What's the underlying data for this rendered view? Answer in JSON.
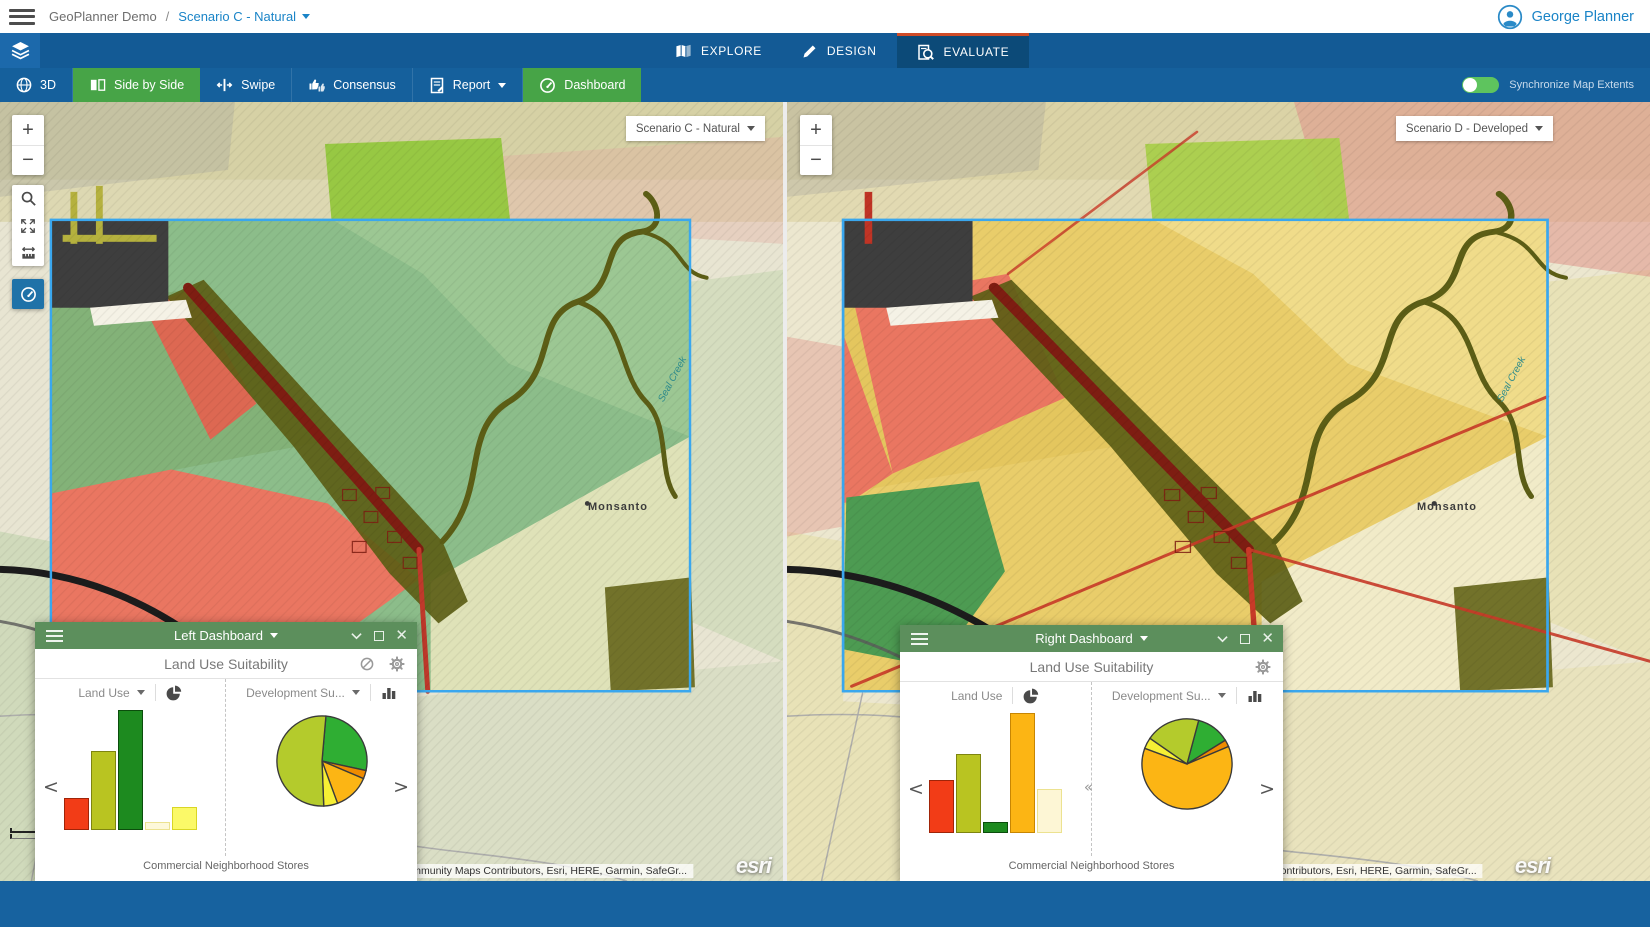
{
  "topbar": {
    "app_title": "GeoPlanner Demo",
    "separator": "/",
    "scenario_link": "Scenario C - Natural",
    "user_name": "George Planner"
  },
  "tabbar": {
    "tabs": [
      {
        "label": "EXPLORE"
      },
      {
        "label": "DESIGN"
      },
      {
        "label": "EVALUATE",
        "active": true
      }
    ]
  },
  "toolbar": {
    "buttons": [
      {
        "label": "3D"
      },
      {
        "label": "Side by Side",
        "active": true
      },
      {
        "label": "Swipe"
      },
      {
        "label": "Consensus"
      },
      {
        "label": "Report"
      },
      {
        "label": "Dashboard",
        "active": true
      }
    ],
    "sync_label": "Synchronize Map Extents",
    "active_green": "#47a447",
    "toggle_on_color": "#5ec45e"
  },
  "maps": {
    "left": {
      "scenario_selector": "Scenario C - Natural",
      "town_label": "Monsanto",
      "creek_label": "Seal Creek",
      "attribution": "Esri Community Maps Contributors, Esri, HERE, Garmin, SafeGr...",
      "esri_logo": "esri",
      "palette": {
        "base": "#e8e5d2",
        "band": "#d6d1a5",
        "band2": "#ddd8b2",
        "wash": "#a9c996",
        "pink": "#e2a9a0",
        "grayZone": "#3e3e3e",
        "pier": "#b5b13e",
        "white": "#f5f2e6",
        "interior": "#8cbd8a",
        "interiorUL": "#83b278",
        "interior2": "#9cc793",
        "lowRight": "#dfe2b8",
        "bright": "#93c73d",
        "red": "#ea7661",
        "red2": "#dd6852",
        "green": "#74ac74",
        "olive": "#5c5e16",
        "darkSquare": "#72722a",
        "roadMain": "#7e1d12",
        "roadRed": "#c0392b",
        "black": "#1c1c1c"
      }
    },
    "right": {
      "scenario_selector": "Scenario D - Developed",
      "town_label": "Monsanto",
      "creek_label": "Seal Creek",
      "attribution": "Esri Community Maps Contributors, Esri, HERE, Garmin, SafeGr...",
      "esri_logo": "esri",
      "palette": {
        "base": "#ece7cf",
        "band": "#dbd3a6",
        "band2": "#e2dab2",
        "wash": "#e4dc9a",
        "pink": "#e0948a",
        "grayZone": "#3e3e3e",
        "pier": "#c03425",
        "white": "#f5f2e6",
        "interior": "#e9cd6a",
        "interiorUL": "#e4c65e",
        "interior2": "#f0dc8a",
        "lowRight": "#f1ebc8",
        "bright": "#aacf4b",
        "red": "#ea7661",
        "red2": "#e06a54",
        "green": "#4d9b52",
        "olive": "#5c5e16",
        "darkSquare": "#72722a",
        "roadMain": "#7e1d12",
        "roadRed": "#c83a28",
        "black": "#1c1c1c"
      }
    }
  },
  "dashboards": {
    "left": {
      "window_title": "Left Dashboard",
      "widget_title": "Land Use Suitability",
      "footer": "Commercial Neighborhood Stores",
      "panel1_label": "Land Use",
      "panel2_label": "Development Su...",
      "bar_chart": {
        "type": "bar",
        "values": [
          27,
          66,
          100,
          7,
          19
        ],
        "colors": [
          "#f23c17",
          "#b9c421",
          "#1d8a1f",
          "#fdf8da",
          "#fbf968"
        ],
        "borders": [
          "#a02408",
          "#7e8510",
          "#0b4d0c",
          "#ece290",
          "#d9d625"
        ]
      },
      "pie_chart": {
        "type": "pie",
        "start_deg": 5,
        "slices": [
          {
            "value": 27,
            "color": "#2fae33"
          },
          {
            "value": 3,
            "color": "#ef8b00"
          },
          {
            "value": 13,
            "color": "#fcb514"
          },
          {
            "value": 5,
            "color": "#f6ef34"
          },
          {
            "value": 52,
            "color": "#b4cb2c"
          }
        ]
      }
    },
    "right": {
      "window_title": "Right Dashboard",
      "widget_title": "Land Use Suitability",
      "footer": "Commercial Neighborhood Stores",
      "panel1_label": "Land Use",
      "panel2_label": "Development Su...",
      "bar_chart": {
        "type": "bar",
        "values": [
          44,
          66,
          9,
          100,
          37
        ],
        "colors": [
          "#f23c17",
          "#b9c421",
          "#1d8a1f",
          "#fcb514",
          "#fdf6d5"
        ],
        "borders": [
          "#a02408",
          "#7e8510",
          "#0b4d0c",
          "#c78603",
          "#ece290"
        ]
      },
      "pie_chart": {
        "type": "pie",
        "start_deg": 15,
        "slices": [
          {
            "value": 12,
            "color": "#2fae33"
          },
          {
            "value": 2.5,
            "color": "#ef8b00"
          },
          {
            "value": 62,
            "color": "#fcb514"
          },
          {
            "value": 4,
            "color": "#f6ef34"
          },
          {
            "value": 19.5,
            "color": "#b4cb2c"
          }
        ]
      }
    }
  }
}
